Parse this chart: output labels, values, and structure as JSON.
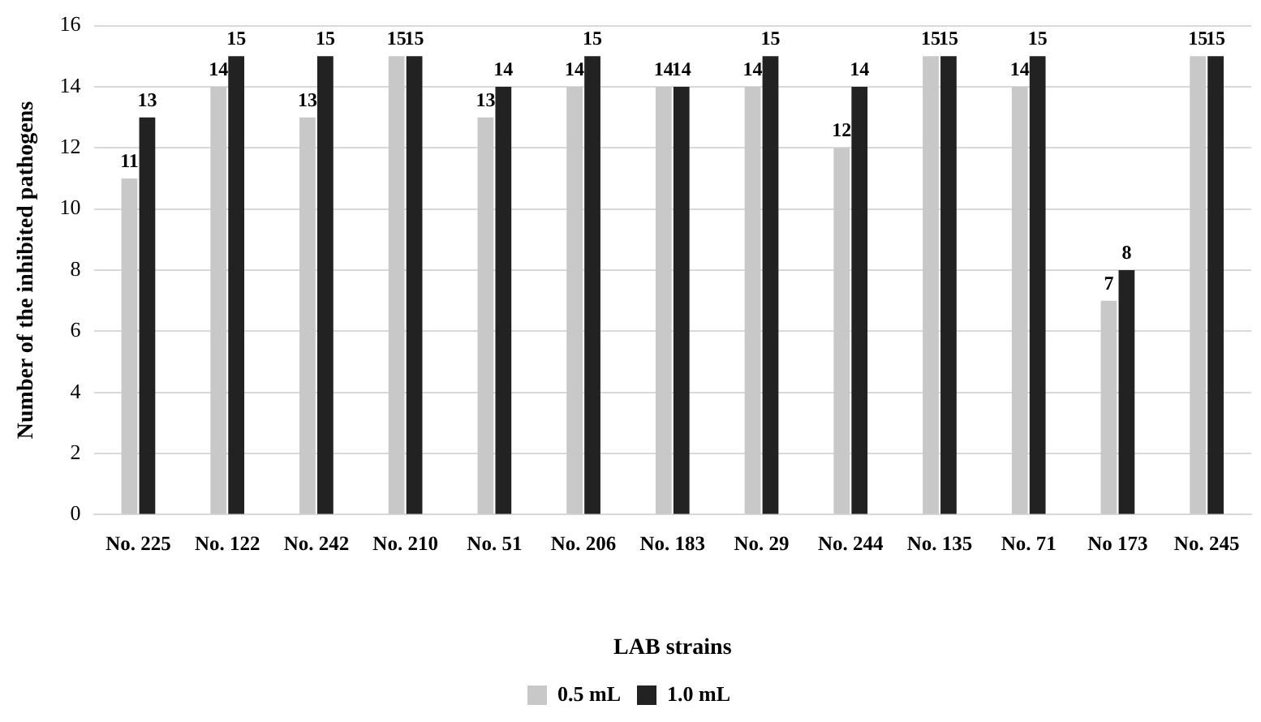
{
  "chart_data": {
    "type": "bar",
    "xlabel": "LAB strains",
    "ylabel": "Number of the inhibited pathogens",
    "categories": [
      "No. 225",
      "No. 122",
      "No. 242",
      "No. 210",
      "No. 51",
      "No. 206",
      "No. 183",
      "No. 29",
      "No. 244",
      "No. 135",
      "No. 71",
      "No 173",
      "No. 245"
    ],
    "series": [
      {
        "name": "0.5 mL",
        "color": "#c8c8c8",
        "values": [
          11,
          14,
          13,
          15,
          13,
          14,
          14,
          14,
          12,
          15,
          14,
          7,
          15
        ]
      },
      {
        "name": "1.0 mL",
        "color": "#222222",
        "values": [
          13,
          15,
          15,
          15,
          14,
          15,
          14,
          15,
          14,
          15,
          15,
          8,
          15
        ]
      }
    ],
    "ylim": [
      0,
      16
    ],
    "yticks": [
      0,
      2,
      4,
      6,
      8,
      10,
      12,
      14,
      16
    ],
    "grid": "y",
    "legend": "bottom",
    "data_labels": true
  }
}
